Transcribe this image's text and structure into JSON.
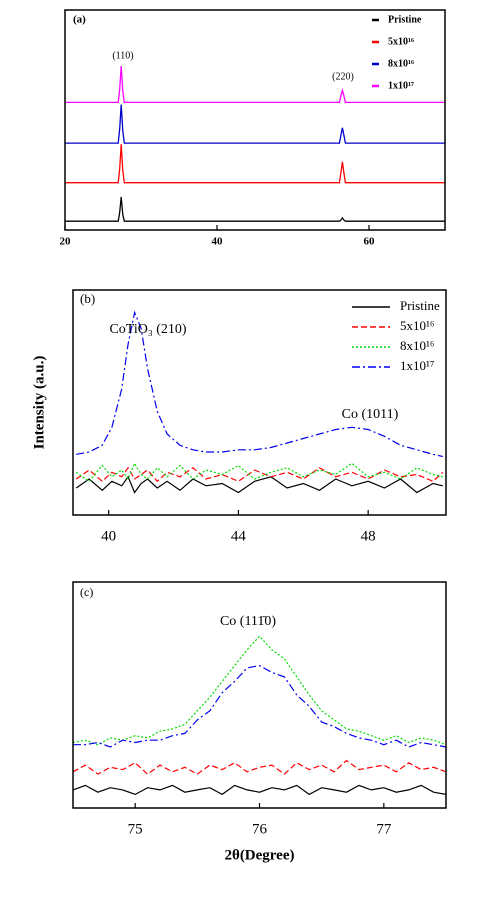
{
  "chart_data": [
    {
      "type": "line",
      "panel_label": "(a)",
      "annotations": [
        "(110)",
        "(220)"
      ],
      "x": [
        20,
        27.0,
        27.2,
        27.4,
        27.6,
        27.8,
        56.1,
        56.3,
        56.5,
        56.7,
        56.9,
        70
      ],
      "xlim": [
        20,
        70
      ],
      "xticks": [
        20,
        40,
        60
      ],
      "ylim": [
        -0.4,
        9.6
      ],
      "series": [
        {
          "name": "Pristine",
          "color": "#000000",
          "line_style": "solid",
          "values": [
            0,
            0,
            0.4,
            1.1,
            0.3,
            0,
            0,
            0.05,
            0.15,
            0.05,
            0,
            0
          ]
        },
        {
          "name": "5x10¹⁶",
          "color": "#ff0000",
          "line_style": "solid",
          "values": [
            1.75,
            1.75,
            2.4,
            3.5,
            2.3,
            1.75,
            1.75,
            2.2,
            2.7,
            2.2,
            1.75,
            1.75
          ]
        },
        {
          "name": "8x10¹⁶",
          "color": "#0000cc",
          "line_style": "solid",
          "values": [
            3.55,
            3.55,
            4.2,
            5.3,
            4.1,
            3.55,
            3.55,
            3.9,
            4.25,
            3.9,
            3.55,
            3.55
          ]
        },
        {
          "name": "1x10¹⁷",
          "color": "#ff00ff",
          "line_style": "solid",
          "values": [
            5.4,
            5.4,
            6.0,
            7.05,
            5.9,
            5.4,
            5.4,
            5.7,
            5.95,
            5.7,
            5.4,
            5.4
          ]
        }
      ]
    },
    {
      "type": "line",
      "panel_label": "(b)",
      "ylabel": "Intensity (a.u.)",
      "annotations": [
        "CoTiO₃ (210)",
        "Co (1011)"
      ],
      "x": [
        39,
        39.4,
        39.8,
        40.1,
        40.4,
        40.6,
        40.8,
        41.0,
        41.2,
        41.5,
        41.8,
        42.2,
        42.6,
        43.0,
        43.5,
        44,
        44.5,
        45,
        45.5,
        46,
        46.5,
        47,
        47.5,
        48,
        48.5,
        49,
        49.5,
        50,
        50.3
      ],
      "xlim": [
        38.9,
        50.4
      ],
      "xticks": [
        40,
        44,
        48
      ],
      "ylim": [
        0,
        10
      ],
      "series": [
        {
          "name": "Pristine",
          "color": "#000000",
          "line_style": "solid",
          "values": [
            1.2,
            1.6,
            1.1,
            1.5,
            1.3,
            1.7,
            1.0,
            1.4,
            1.6,
            1.2,
            1.5,
            1.1,
            1.6,
            1.3,
            1.4,
            1.0,
            1.5,
            1.7,
            1.2,
            1.4,
            1.1,
            1.6,
            1.3,
            1.5,
            1.2,
            1.6,
            1.0,
            1.4,
            1.3
          ]
        },
        {
          "name": "5x10¹⁶",
          "color": "#ff0000",
          "line_style": "dashed",
          "values": [
            1.6,
            2.0,
            1.5,
            1.9,
            1.7,
            2.1,
            1.6,
            1.8,
            2.0,
            1.5,
            1.9,
            1.7,
            2.1,
            1.6,
            1.8,
            1.5,
            2.0,
            1.7,
            1.9,
            1.6,
            2.1,
            1.7,
            1.9,
            1.6,
            2.0,
            1.7,
            1.8,
            1.5,
            1.9
          ]
        },
        {
          "name": "8x10¹⁶",
          "color": "#00dd00",
          "line_style": "dotted",
          "values": [
            1.9,
            1.5,
            2.2,
            1.7,
            2.0,
            1.6,
            2.3,
            1.8,
            1.6,
            2.1,
            1.7,
            2.2,
            1.6,
            2.0,
            1.8,
            2.2,
            1.6,
            1.9,
            2.1,
            1.7,
            2.0,
            1.8,
            2.3,
            1.7,
            1.9,
            1.6,
            2.1,
            1.8,
            1.7
          ]
        },
        {
          "name": "1x10¹⁷",
          "color": "#0000ee",
          "line_style": "dashdot",
          "values": [
            2.7,
            2.8,
            3.1,
            3.9,
            5.6,
            7.6,
            9.0,
            8.3,
            6.5,
            4.6,
            3.6,
            3.1,
            2.9,
            2.8,
            2.8,
            2.9,
            2.9,
            3.0,
            3.2,
            3.4,
            3.6,
            3.8,
            3.9,
            3.8,
            3.5,
            3.1,
            2.9,
            2.7,
            2.6
          ]
        }
      ]
    },
    {
      "type": "line",
      "panel_label": "(c)",
      "xlabel": "2θ(Degree)",
      "annotations": [
        "Co (111̄0)"
      ],
      "x": [
        74.5,
        74.6,
        74.7,
        74.8,
        74.9,
        75.0,
        75.1,
        75.2,
        75.3,
        75.4,
        75.5,
        75.6,
        75.7,
        75.8,
        75.9,
        76.0,
        76.1,
        76.2,
        76.3,
        76.4,
        76.5,
        76.6,
        76.7,
        76.8,
        76.9,
        77.0,
        77.1,
        77.2,
        77.3,
        77.4,
        77.5
      ],
      "xlim": [
        74.5,
        77.5
      ],
      "xticks": [
        75,
        76,
        77
      ],
      "ylim": [
        0,
        10
      ],
      "series": [
        {
          "name": "Pristine",
          "color": "#000000",
          "line_style": "solid",
          "values": [
            0.8,
            1.0,
            0.7,
            0.9,
            0.8,
            0.6,
            0.9,
            0.8,
            1.0,
            0.7,
            0.8,
            0.9,
            0.6,
            1.0,
            0.8,
            0.7,
            0.9,
            0.8,
            1.0,
            0.6,
            0.9,
            0.8,
            0.7,
            1.0,
            0.8,
            0.9,
            0.7,
            0.8,
            1.0,
            0.7,
            0.6
          ]
        },
        {
          "name": "5x10¹⁶",
          "color": "#ff0000",
          "line_style": "dashed",
          "values": [
            1.6,
            1.9,
            1.5,
            1.8,
            1.7,
            2.0,
            1.5,
            1.9,
            1.6,
            1.8,
            1.5,
            1.9,
            1.7,
            2.0,
            1.6,
            1.8,
            1.9,
            1.5,
            2.0,
            1.7,
            1.9,
            1.6,
            2.1,
            1.7,
            1.8,
            1.9,
            1.6,
            2.0,
            1.7,
            1.8,
            1.6
          ]
        },
        {
          "name": "8x10¹⁶",
          "color": "#00dd00",
          "line_style": "dotted",
          "values": [
            2.9,
            3.0,
            2.8,
            3.1,
            3.0,
            3.2,
            3.1,
            3.4,
            3.5,
            3.7,
            4.3,
            4.9,
            5.6,
            6.3,
            7.0,
            7.6,
            7.0,
            6.6,
            5.8,
            5.0,
            4.3,
            3.9,
            3.5,
            3.4,
            3.2,
            3.0,
            3.2,
            2.9,
            3.1,
            3.0,
            2.8
          ]
        },
        {
          "name": "1x10¹⁷",
          "color": "#0000ee",
          "line_style": "dashdot",
          "values": [
            2.8,
            2.8,
            2.9,
            2.7,
            3.0,
            2.9,
            3.0,
            3.0,
            3.2,
            3.3,
            3.9,
            4.3,
            5.1,
            5.6,
            6.2,
            6.3,
            6.0,
            5.8,
            5.0,
            4.5,
            3.8,
            3.6,
            3.3,
            3.1,
            3.0,
            2.8,
            3.0,
            2.7,
            2.9,
            2.8,
            2.7
          ]
        }
      ]
    }
  ]
}
